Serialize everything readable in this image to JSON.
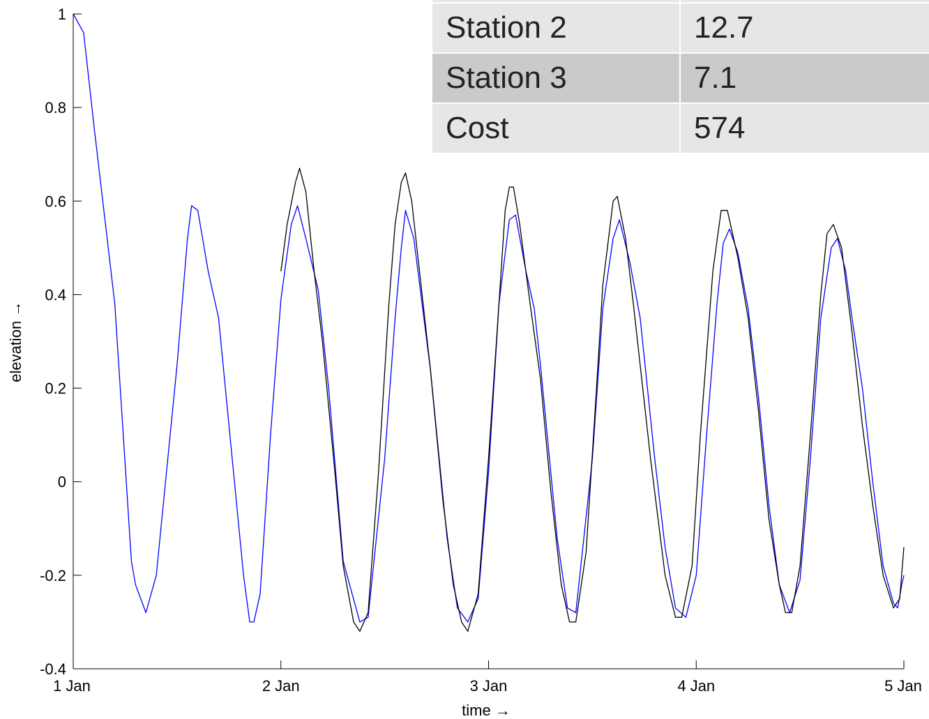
{
  "chart_data": {
    "type": "line",
    "xlabel": "time →",
    "ylabel": "elevation →",
    "x_ticks": [
      "1 Jan",
      "2 Jan",
      "3 Jan",
      "4 Jan",
      "5 Jan"
    ],
    "x_tick_values": [
      0,
      1,
      2,
      3,
      4
    ],
    "y_ticks": [
      "-0.4",
      "-0.2",
      "0",
      "0.2",
      "0.4",
      "0.6",
      "0.8",
      "1"
    ],
    "y_tick_values": [
      -0.4,
      -0.2,
      0,
      0.2,
      0.4,
      0.6,
      0.8,
      1
    ],
    "xlim": [
      0,
      4
    ],
    "ylim": [
      -0.4,
      1
    ],
    "grid": false,
    "series": [
      {
        "color": "#0000ff",
        "x_start": 0,
        "x_end": 4,
        "points": [
          [
            0.0,
            1.0
          ],
          [
            0.05,
            0.96
          ],
          [
            0.1,
            0.76
          ],
          [
            0.2,
            0.38
          ],
          [
            0.28,
            -0.17
          ],
          [
            0.3,
            -0.22
          ],
          [
            0.35,
            -0.28
          ],
          [
            0.4,
            -0.2
          ],
          [
            0.5,
            0.25
          ],
          [
            0.55,
            0.52
          ],
          [
            0.57,
            0.59
          ],
          [
            0.6,
            0.58
          ],
          [
            0.65,
            0.45
          ],
          [
            0.7,
            0.35
          ],
          [
            0.75,
            0.12
          ],
          [
            0.82,
            -0.2
          ],
          [
            0.85,
            -0.3
          ],
          [
            0.87,
            -0.3
          ],
          [
            0.9,
            -0.24
          ],
          [
            0.95,
            0.1
          ],
          [
            1.0,
            0.39
          ],
          [
            1.05,
            0.55
          ],
          [
            1.08,
            0.59
          ],
          [
            1.12,
            0.52
          ],
          [
            1.18,
            0.41
          ],
          [
            1.23,
            0.2
          ],
          [
            1.3,
            -0.17
          ],
          [
            1.38,
            -0.3
          ],
          [
            1.42,
            -0.29
          ],
          [
            1.5,
            0.05
          ],
          [
            1.55,
            0.35
          ],
          [
            1.58,
            0.5
          ],
          [
            1.6,
            0.58
          ],
          [
            1.64,
            0.52
          ],
          [
            1.68,
            0.38
          ],
          [
            1.72,
            0.24
          ],
          [
            1.8,
            -0.12
          ],
          [
            1.85,
            -0.27
          ],
          [
            1.9,
            -0.3
          ],
          [
            1.95,
            -0.25
          ],
          [
            2.0,
            0.02
          ],
          [
            2.05,
            0.38
          ],
          [
            2.1,
            0.56
          ],
          [
            2.13,
            0.57
          ],
          [
            2.18,
            0.45
          ],
          [
            2.22,
            0.37
          ],
          [
            2.25,
            0.25
          ],
          [
            2.33,
            -0.12
          ],
          [
            2.38,
            -0.27
          ],
          [
            2.42,
            -0.28
          ],
          [
            2.5,
            0.05
          ],
          [
            2.55,
            0.37
          ],
          [
            2.6,
            0.52
          ],
          [
            2.63,
            0.56
          ],
          [
            2.68,
            0.47
          ],
          [
            2.73,
            0.35
          ],
          [
            2.8,
            0.05
          ],
          [
            2.85,
            -0.14
          ],
          [
            2.9,
            -0.27
          ],
          [
            2.95,
            -0.29
          ],
          [
            3.0,
            -0.2
          ],
          [
            3.05,
            0.1
          ],
          [
            3.1,
            0.38
          ],
          [
            3.13,
            0.51
          ],
          [
            3.16,
            0.54
          ],
          [
            3.2,
            0.49
          ],
          [
            3.25,
            0.37
          ],
          [
            3.3,
            0.18
          ],
          [
            3.35,
            -0.05
          ],
          [
            3.4,
            -0.22
          ],
          [
            3.45,
            -0.28
          ],
          [
            3.5,
            -0.21
          ],
          [
            3.55,
            0.05
          ],
          [
            3.6,
            0.35
          ],
          [
            3.65,
            0.5
          ],
          [
            3.68,
            0.52
          ],
          [
            3.72,
            0.45
          ],
          [
            3.75,
            0.35
          ],
          [
            3.8,
            0.2
          ],
          [
            3.85,
            0.0
          ],
          [
            3.9,
            -0.18
          ],
          [
            3.95,
            -0.26
          ],
          [
            3.97,
            -0.27
          ],
          [
            3.99,
            -0.22
          ],
          [
            4.0,
            -0.2
          ]
        ]
      },
      {
        "color": "#000000",
        "x_start": 1,
        "x_end": 4,
        "points": [
          [
            1.0,
            0.45
          ],
          [
            1.03,
            0.55
          ],
          [
            1.07,
            0.64
          ],
          [
            1.09,
            0.67
          ],
          [
            1.12,
            0.62
          ],
          [
            1.16,
            0.45
          ],
          [
            1.2,
            0.3
          ],
          [
            1.26,
            0.02
          ],
          [
            1.3,
            -0.18
          ],
          [
            1.35,
            -0.3
          ],
          [
            1.38,
            -0.32
          ],
          [
            1.42,
            -0.28
          ],
          [
            1.47,
            0.02
          ],
          [
            1.52,
            0.38
          ],
          [
            1.55,
            0.55
          ],
          [
            1.58,
            0.64
          ],
          [
            1.6,
            0.66
          ],
          [
            1.63,
            0.6
          ],
          [
            1.68,
            0.4
          ],
          [
            1.72,
            0.24
          ],
          [
            1.78,
            -0.04
          ],
          [
            1.83,
            -0.22
          ],
          [
            1.87,
            -0.3
          ],
          [
            1.9,
            -0.32
          ],
          [
            1.95,
            -0.24
          ],
          [
            2.0,
            0.05
          ],
          [
            2.05,
            0.38
          ],
          [
            2.08,
            0.58
          ],
          [
            2.1,
            0.63
          ],
          [
            2.12,
            0.63
          ],
          [
            2.15,
            0.55
          ],
          [
            2.2,
            0.38
          ],
          [
            2.25,
            0.22
          ],
          [
            2.3,
            -0.02
          ],
          [
            2.35,
            -0.22
          ],
          [
            2.39,
            -0.3
          ],
          [
            2.42,
            -0.3
          ],
          [
            2.47,
            -0.15
          ],
          [
            2.52,
            0.2
          ],
          [
            2.55,
            0.42
          ],
          [
            2.6,
            0.6
          ],
          [
            2.62,
            0.61
          ],
          [
            2.66,
            0.52
          ],
          [
            2.7,
            0.37
          ],
          [
            2.78,
            0.05
          ],
          [
            2.85,
            -0.2
          ],
          [
            2.9,
            -0.29
          ],
          [
            2.93,
            -0.29
          ],
          [
            2.98,
            -0.18
          ],
          [
            3.02,
            0.1
          ],
          [
            3.08,
            0.45
          ],
          [
            3.12,
            0.58
          ],
          [
            3.15,
            0.58
          ],
          [
            3.2,
            0.48
          ],
          [
            3.25,
            0.35
          ],
          [
            3.3,
            0.15
          ],
          [
            3.35,
            -0.08
          ],
          [
            3.4,
            -0.22
          ],
          [
            3.43,
            -0.28
          ],
          [
            3.46,
            -0.28
          ],
          [
            3.5,
            -0.18
          ],
          [
            3.55,
            0.1
          ],
          [
            3.6,
            0.4
          ],
          [
            3.63,
            0.53
          ],
          [
            3.66,
            0.55
          ],
          [
            3.7,
            0.5
          ],
          [
            3.75,
            0.32
          ],
          [
            3.8,
            0.12
          ],
          [
            3.85,
            -0.05
          ],
          [
            3.9,
            -0.2
          ],
          [
            3.95,
            -0.27
          ],
          [
            3.98,
            -0.25
          ],
          [
            4.0,
            -0.14
          ]
        ]
      }
    ]
  },
  "table": {
    "rows": [
      {
        "name": "Station 2",
        "value": "12.7"
      },
      {
        "name": "Station 3",
        "value": "7.1"
      },
      {
        "name": "Cost",
        "value": "574"
      }
    ]
  }
}
